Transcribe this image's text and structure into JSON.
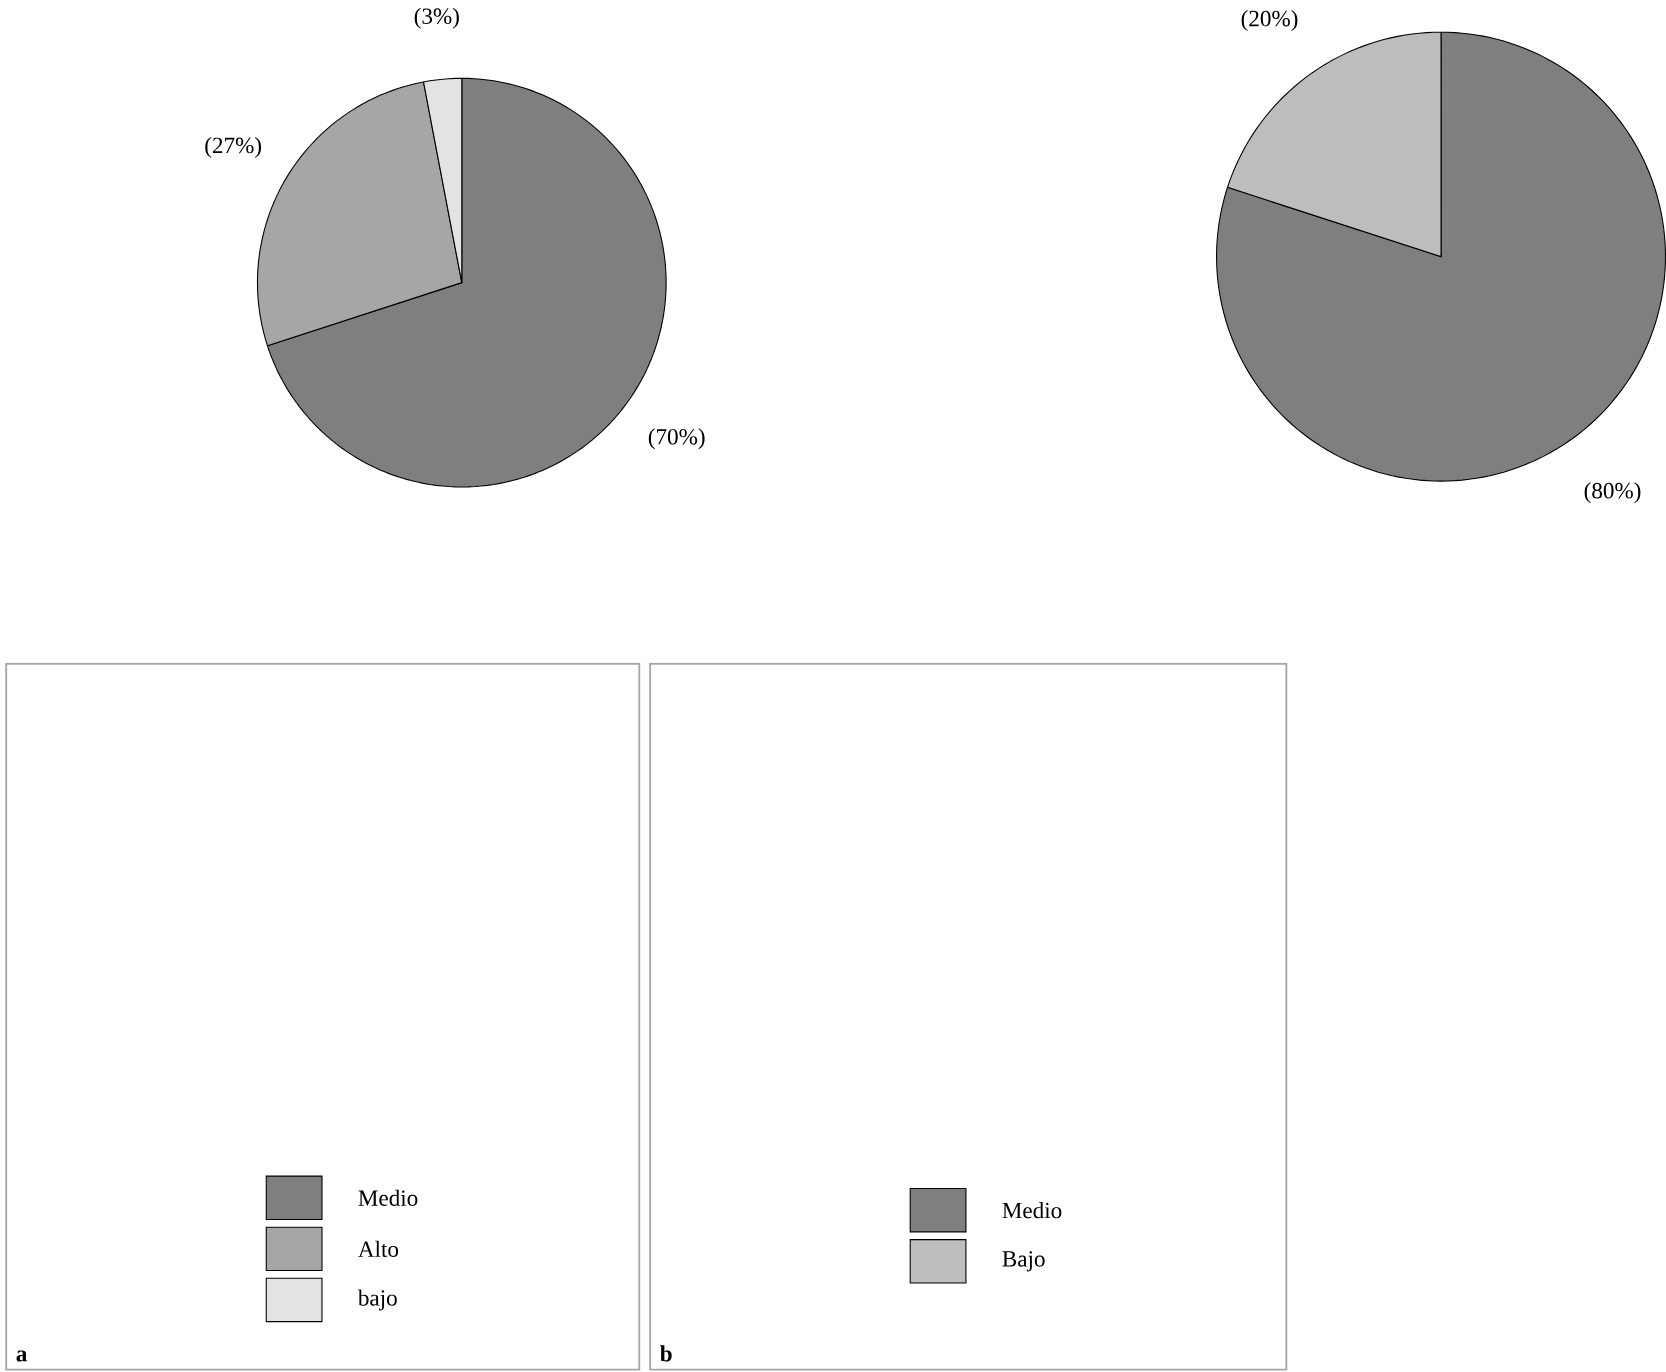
{
  "chart_data": [
    {
      "type": "pie",
      "categories": [
        "Medio",
        "Alto",
        "bajo"
      ],
      "values": [
        70,
        27,
        3
      ],
      "colors": [
        "#7f7f7f",
        "#a6a6a6",
        "#e3e3e3"
      ],
      "value_labels": [
        "(70%)",
        "(27%)",
        "(3%)"
      ],
      "legend": "bottom",
      "annotations": [
        "a"
      ]
    },
    {
      "type": "pie",
      "categories": [
        "Medio",
        "Bajo"
      ],
      "values": [
        80,
        20
      ],
      "colors": [
        "#7f7f7f",
        "#bdbdbd"
      ],
      "value_labels": [
        "(80%)",
        "(20%)"
      ],
      "legend": "bottom",
      "annotations": [
        "b"
      ]
    }
  ]
}
